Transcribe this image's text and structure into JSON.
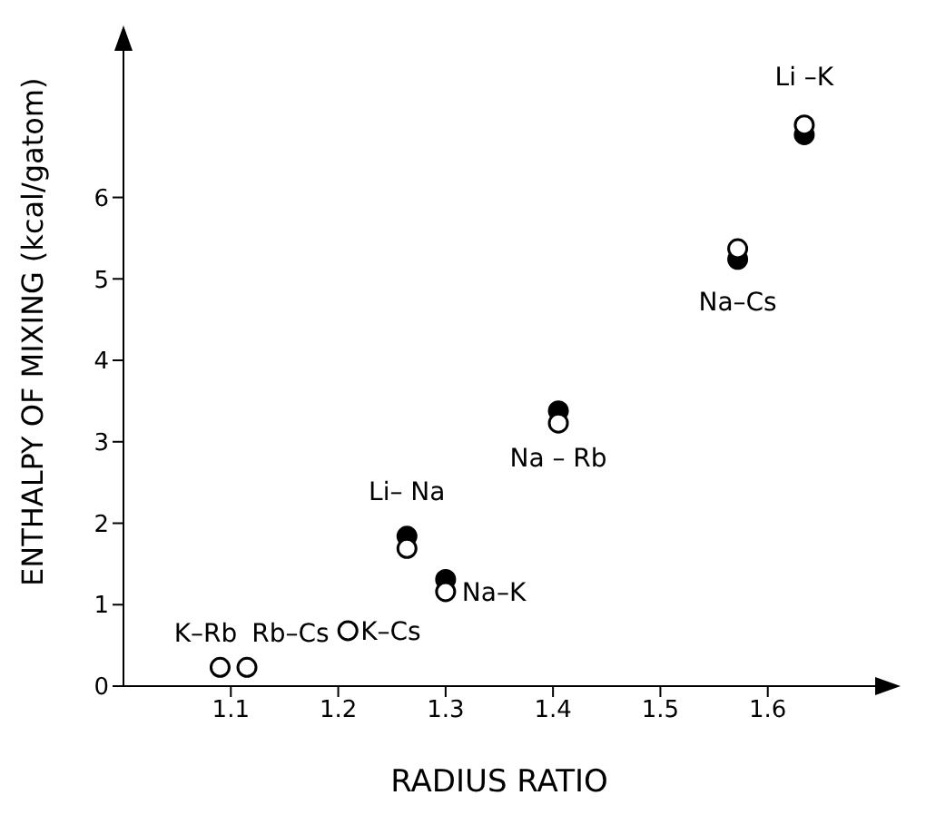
{
  "chart_data": {
    "type": "scatter",
    "xlabel": "RADIUS RATIO",
    "ylabel": "ENTHALPY OF MIXING (kcal/gatom)",
    "xlim": [
      1.0,
      1.7
    ],
    "xticks": [
      1.1,
      1.2,
      1.3,
      1.4,
      1.5,
      1.6
    ],
    "ylim": [
      0,
      7.8
    ],
    "yticks": [
      0,
      1,
      2,
      3,
      4,
      5,
      6
    ],
    "grid": false,
    "legend": false,
    "marker": "circle",
    "series": [
      {
        "color": "#000000",
        "x": [
          1.264,
          1.3,
          1.405,
          1.572,
          1.634
        ],
        "values": [
          1.84,
          1.31,
          3.38,
          5.24,
          6.77
        ]
      },
      {
        "color": "#ffffff",
        "x": [
          1.09,
          1.115,
          1.209,
          1.264,
          1.3,
          1.405,
          1.572,
          1.634
        ],
        "values": [
          0.23,
          0.23,
          0.68,
          1.69,
          1.16,
          3.23,
          5.37,
          6.89
        ]
      }
    ],
    "annotations": [
      {
        "text": "K–Rb",
        "x": 1.09,
        "y": 0.23
      },
      {
        "text": "Rb–Cs",
        "x": 1.115,
        "y": 0.23
      },
      {
        "text": "K–Cs",
        "x": 1.209,
        "y": 0.68
      },
      {
        "text": "Li– Na",
        "x": 1.264,
        "y": 1.84
      },
      {
        "text": "Na–K",
        "x": 1.3,
        "y": 1.16
      },
      {
        "text": "Na – Rb",
        "x": 1.405,
        "y": 3.23
      },
      {
        "text": "Na–Cs",
        "x": 1.572,
        "y": 5.24
      },
      {
        "text": "Li –K",
        "x": 1.634,
        "y": 6.89
      }
    ]
  }
}
